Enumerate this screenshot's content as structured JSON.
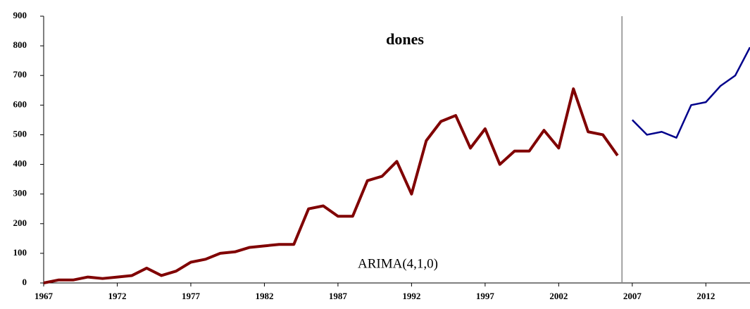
{
  "chart_data": {
    "type": "line",
    "title": "dones",
    "annotation": "ARIMA(4,1,0)",
    "x": [
      1967,
      1968,
      1969,
      1970,
      1971,
      1972,
      1973,
      1974,
      1975,
      1976,
      1977,
      1978,
      1979,
      1980,
      1981,
      1982,
      1983,
      1984,
      1985,
      1986,
      1987,
      1988,
      1989,
      1990,
      1991,
      1992,
      1993,
      1994,
      1995,
      1996,
      1997,
      1998,
      1999,
      2000,
      2001,
      2002,
      2003,
      2004,
      2005,
      2006,
      2007,
      2008,
      2009,
      2010,
      2011,
      2012,
      2013,
      2014,
      2015
    ],
    "series": [
      {
        "color": "#800000",
        "values": [
          0,
          10,
          10,
          20,
          15,
          20,
          25,
          50,
          25,
          40,
          70,
          80,
          100,
          105,
          120,
          125,
          130,
          130,
          250,
          260,
          225,
          225,
          345,
          360,
          410,
          300,
          480,
          545,
          565,
          455,
          520,
          400,
          445,
          445,
          515,
          455,
          655,
          510,
          500,
          430,
          null,
          null,
          null,
          null,
          null,
          null,
          null,
          null,
          null
        ]
      },
      {
        "color": "#00008b",
        "values": [
          null,
          null,
          null,
          null,
          null,
          null,
          null,
          null,
          null,
          null,
          null,
          null,
          null,
          null,
          null,
          null,
          null,
          null,
          null,
          null,
          null,
          null,
          null,
          null,
          null,
          null,
          null,
          null,
          null,
          null,
          null,
          null,
          null,
          null,
          null,
          null,
          null,
          null,
          null,
          null,
          550,
          500,
          510,
          490,
          600,
          610,
          665,
          700,
          795
        ]
      }
    ],
    "vlines": [
      2006.3
    ],
    "xlim": [
      1967,
      2015
    ],
    "xticks": [
      1967,
      1972,
      1977,
      1982,
      1987,
      1992,
      1997,
      2002,
      2007,
      2012
    ],
    "ylim": [
      0,
      900
    ],
    "yticks": [
      0,
      100,
      200,
      300,
      400,
      500,
      600,
      700,
      800,
      900
    ]
  }
}
